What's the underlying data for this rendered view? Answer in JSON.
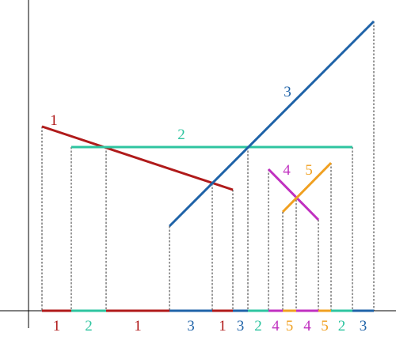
{
  "segments": [
    {
      "label": "1",
      "color": "#b01a1a"
    },
    {
      "label": "2",
      "color": "#2ec4a0"
    },
    {
      "label": "3",
      "color": "#1f63a8"
    },
    {
      "label": "4",
      "color": "#c030c0"
    },
    {
      "label": "5",
      "color": "#f0a020"
    }
  ],
  "sequence": [
    "1",
    "2",
    "1",
    "3",
    "1",
    "3",
    "2",
    "4",
    "5",
    "4",
    "5",
    "2",
    "3"
  ]
}
